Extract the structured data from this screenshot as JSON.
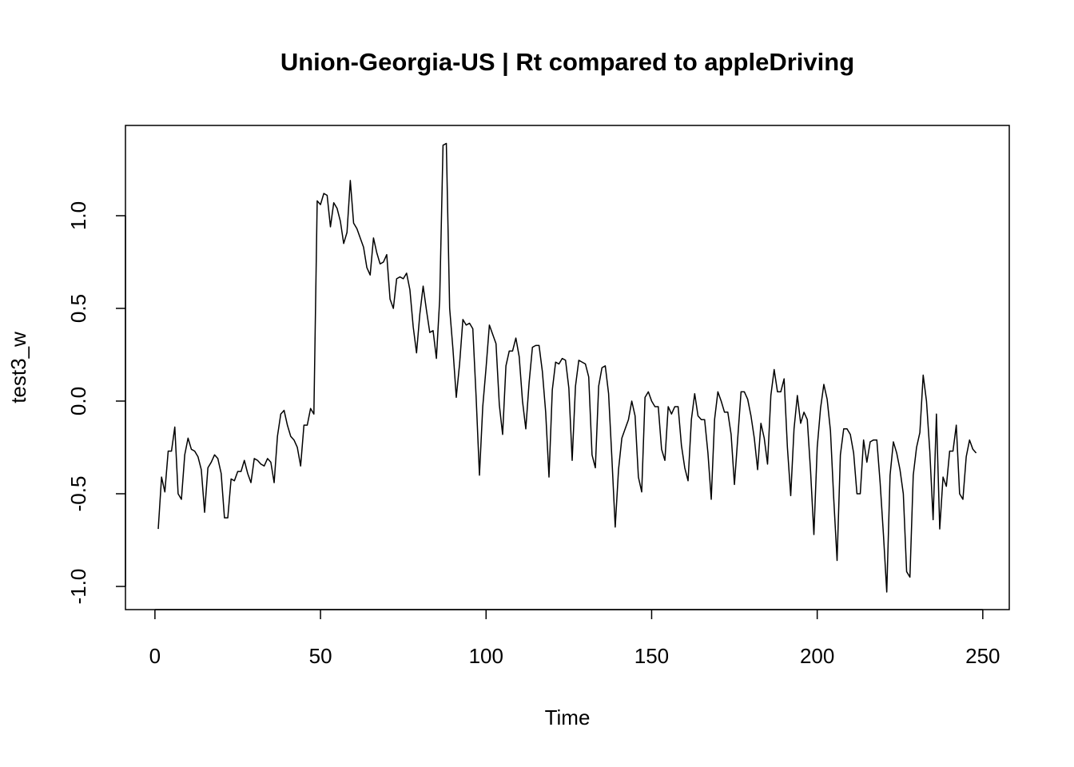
{
  "chart_data": {
    "type": "line",
    "title": "Union-Georgia-US | Rt compared to appleDriving",
    "xlabel": "Time",
    "ylabel": "test3_w",
    "xlim": [
      -8.9,
      258
    ],
    "ylim": [
      -1.125,
      1.487
    ],
    "xticks": [
      0,
      50,
      100,
      150,
      200,
      250
    ],
    "yticks": [
      {
        "value": -1,
        "label": "-1.0"
      },
      -0.5,
      {
        "value": 0,
        "label": "0.0"
      },
      0.5,
      {
        "value": 1,
        "label": "1.0"
      }
    ],
    "x": [
      1,
      2,
      3,
      4,
      5,
      6,
      7,
      8,
      9,
      10,
      11,
      12,
      13,
      14,
      15,
      16,
      17,
      18,
      19,
      20,
      21,
      22,
      23,
      24,
      25,
      26,
      27,
      28,
      29,
      30,
      31,
      32,
      33,
      34,
      35,
      36,
      37,
      38,
      39,
      40,
      41,
      42,
      43,
      44,
      45,
      46,
      47,
      48,
      49,
      50,
      51,
      52,
      53,
      54,
      55,
      56,
      57,
      58,
      59,
      60,
      61,
      62,
      63,
      64,
      65,
      66,
      67,
      68,
      69,
      70,
      71,
      72,
      73,
      74,
      75,
      76,
      77,
      78,
      79,
      80,
      81,
      82,
      83,
      84,
      85,
      86,
      87,
      88,
      89,
      90,
      91,
      92,
      93,
      94,
      95,
      96,
      97,
      98,
      99,
      100,
      101,
      102,
      103,
      104,
      105,
      106,
      107,
      108,
      109,
      110,
      111,
      112,
      113,
      114,
      115,
      116,
      117,
      118,
      119,
      120,
      121,
      122,
      123,
      124,
      125,
      126,
      127,
      128,
      129,
      130,
      131,
      132,
      133,
      134,
      135,
      136,
      137,
      138,
      139,
      140,
      141,
      142,
      143,
      144,
      145,
      146,
      147,
      148,
      149,
      150,
      151,
      152,
      153,
      154,
      155,
      156,
      157,
      158,
      159,
      160,
      161,
      162,
      163,
      164,
      165,
      166,
      167,
      168,
      169,
      170,
      171,
      172,
      173,
      174,
      175,
      176,
      177,
      178,
      179,
      180,
      181,
      182,
      183,
      184,
      185,
      186,
      187,
      188,
      189,
      190,
      191,
      192,
      193,
      194,
      195,
      196,
      197,
      198,
      199,
      200,
      201,
      202,
      203,
      204,
      205,
      206,
      207,
      208,
      209,
      210,
      211,
      212,
      213,
      214,
      215,
      216,
      217,
      218,
      219,
      220,
      221,
      222,
      223,
      224,
      225,
      226,
      227,
      228,
      229,
      230,
      231,
      232,
      233,
      234,
      235,
      236,
      237,
      238,
      239,
      240,
      241,
      242,
      243,
      244,
      245,
      246,
      247,
      248
    ],
    "series": [
      {
        "color": "#000000",
        "values": [
          -0.69,
          -0.41,
          -0.49,
          -0.27,
          -0.27,
          -0.14,
          -0.5,
          -0.53,
          -0.29,
          -0.2,
          -0.26,
          -0.27,
          -0.3,
          -0.37,
          -0.6,
          -0.36,
          -0.33,
          -0.29,
          -0.31,
          -0.39,
          -0.63,
          -0.63,
          -0.42,
          -0.43,
          -0.38,
          -0.38,
          -0.32,
          -0.39,
          -0.44,
          -0.31,
          -0.32,
          -0.34,
          -0.35,
          -0.31,
          -0.33,
          -0.44,
          -0.19,
          -0.07,
          -0.05,
          -0.13,
          -0.19,
          -0.21,
          -0.25,
          -0.35,
          -0.13,
          -0.13,
          -0.04,
          -0.07,
          1.08,
          1.06,
          1.12,
          1.11,
          0.94,
          1.07,
          1.04,
          0.97,
          0.85,
          0.91,
          1.19,
          0.96,
          0.93,
          0.88,
          0.83,
          0.72,
          0.68,
          0.88,
          0.8,
          0.74,
          0.75,
          0.79,
          0.55,
          0.5,
          0.66,
          0.67,
          0.66,
          0.69,
          0.6,
          0.4,
          0.26,
          0.47,
          0.62,
          0.49,
          0.37,
          0.38,
          0.23,
          0.55,
          1.38,
          1.39,
          0.5,
          0.28,
          0.02,
          0.2,
          0.44,
          0.41,
          0.42,
          0.39,
          0.02,
          -0.4,
          -0.03,
          0.18,
          0.41,
          0.36,
          0.31,
          -0.02,
          -0.18,
          0.19,
          0.27,
          0.27,
          0.34,
          0.24,
          0.0,
          -0.15,
          0.1,
          0.29,
          0.3,
          0.3,
          0.16,
          -0.06,
          -0.41,
          0.06,
          0.21,
          0.2,
          0.23,
          0.22,
          0.07,
          -0.32,
          0.08,
          0.22,
          0.21,
          0.2,
          0.13,
          -0.29,
          -0.36,
          0.08,
          0.18,
          0.19,
          0.04,
          -0.31,
          -0.68,
          -0.37,
          -0.2,
          -0.15,
          -0.1,
          0.0,
          -0.08,
          -0.41,
          -0.49,
          0.02,
          0.05,
          0.0,
          -0.03,
          -0.03,
          -0.26,
          -0.32,
          -0.03,
          -0.07,
          -0.03,
          -0.03,
          -0.24,
          -0.36,
          -0.43,
          -0.1,
          0.04,
          -0.08,
          -0.1,
          -0.1,
          -0.28,
          -0.53,
          -0.1,
          0.05,
          0.0,
          -0.06,
          -0.06,
          -0.18,
          -0.45,
          -0.2,
          0.05,
          0.05,
          0.01,
          -0.08,
          -0.2,
          -0.37,
          -0.12,
          -0.2,
          -0.34,
          0.03,
          0.17,
          0.05,
          0.05,
          0.12,
          -0.25,
          -0.51,
          -0.15,
          0.03,
          -0.12,
          -0.06,
          -0.1,
          -0.38,
          -0.72,
          -0.25,
          -0.04,
          0.09,
          0.01,
          -0.16,
          -0.53,
          -0.86,
          -0.29,
          -0.15,
          -0.15,
          -0.18,
          -0.28,
          -0.5,
          -0.5,
          -0.21,
          -0.33,
          -0.22,
          -0.21,
          -0.21,
          -0.44,
          -0.72,
          -1.03,
          -0.4,
          -0.22,
          -0.28,
          -0.37,
          -0.5,
          -0.92,
          -0.95,
          -0.4,
          -0.25,
          -0.17,
          0.14,
          0.0,
          -0.27,
          -0.64,
          -0.07,
          -0.69,
          -0.41,
          -0.46,
          -0.27,
          -0.27,
          -0.13,
          -0.5,
          -0.53,
          -0.3,
          -0.21,
          -0.26,
          -0.28
        ]
      }
    ]
  }
}
